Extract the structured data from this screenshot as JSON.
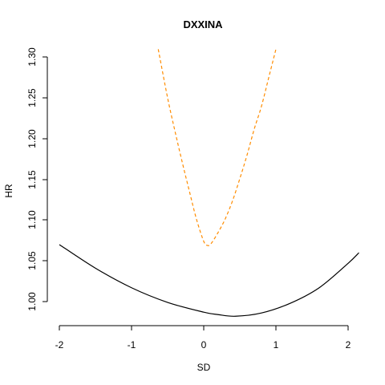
{
  "chart_data": {
    "type": "line",
    "title": "DXXINA",
    "xlabel": "SD",
    "ylabel": "HR",
    "xlim": [
      -2.0,
      2.2
    ],
    "ylim": [
      0.98,
      1.305
    ],
    "xticks": [
      "-2",
      "-1",
      "0",
      "1",
      "2"
    ],
    "yticks": [
      "1.00",
      "1.05",
      "1.10",
      "1.15",
      "1.20",
      "1.25",
      "1.30"
    ],
    "grid": false,
    "legend": "none",
    "series": [
      {
        "color": "#000000",
        "line_style": "solid",
        "x": [
          -2.0,
          -1.5,
          -1.0,
          -0.5,
          0.0,
          0.2,
          0.44,
          0.8,
          1.2,
          1.6,
          2.0,
          2.15
        ],
        "y": [
          1.07,
          1.041,
          1.017,
          0.999,
          0.987,
          0.984,
          0.982,
          0.986,
          0.998,
          1.017,
          1.047,
          1.06
        ]
      },
      {
        "color": "#ff8c00",
        "line_style": "dashed",
        "x": [
          -0.63,
          -0.5,
          -0.4,
          -0.3,
          -0.2,
          -0.1,
          0.0,
          0.05,
          0.1,
          0.2,
          0.3,
          0.4,
          0.5,
          0.6,
          0.7,
          0.8,
          0.9,
          1.0
        ],
        "y": [
          1.31,
          1.25,
          1.21,
          1.172,
          1.136,
          1.101,
          1.074,
          1.069,
          1.071,
          1.085,
          1.102,
          1.124,
          1.151,
          1.18,
          1.212,
          1.24,
          1.275,
          1.31
        ]
      }
    ]
  }
}
